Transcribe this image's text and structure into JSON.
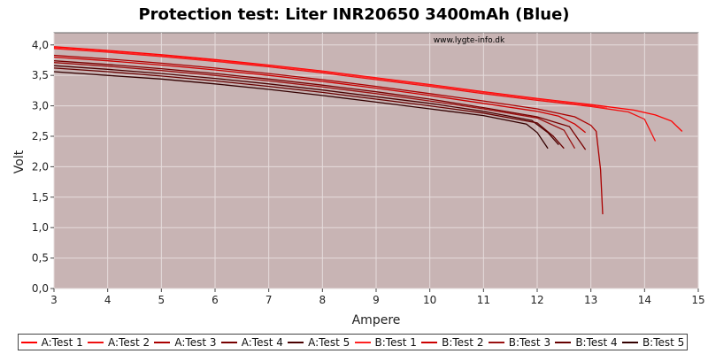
{
  "chart_data": {
    "type": "line",
    "title": "Protection test: Liter INR20650 3400mAh (Blue)",
    "watermark": "www.lygte-info.dk",
    "xlabel": "Ampere",
    "ylabel": "Volt",
    "xlim": [
      3,
      15
    ],
    "ylim": [
      0,
      4.2
    ],
    "xticks": [
      "3",
      "4",
      "5",
      "6",
      "7",
      "8",
      "9",
      "10",
      "11",
      "12",
      "13",
      "14",
      "15"
    ],
    "yticks": [
      "0,0",
      "0,5",
      "1,0",
      "1,5",
      "2,0",
      "2,5",
      "3,0",
      "3,5",
      "4,0"
    ],
    "grid": true,
    "background": "#c8b4b4",
    "legend_position": "bottom",
    "series": [
      {
        "name": "A:Test 1",
        "color": "#ff0000",
        "points": [
          [
            3,
            3.97
          ],
          [
            4,
            3.91
          ],
          [
            5,
            3.84
          ],
          [
            6,
            3.76
          ],
          [
            7,
            3.67
          ],
          [
            8,
            3.57
          ],
          [
            9,
            3.46
          ],
          [
            10,
            3.35
          ],
          [
            11,
            3.23
          ],
          [
            12,
            3.12
          ],
          [
            13,
            3.02
          ],
          [
            13.8,
            2.93
          ],
          [
            14.2,
            2.85
          ],
          [
            14.5,
            2.75
          ],
          [
            14.7,
            2.58
          ]
        ]
      },
      {
        "name": "A:Test 2",
        "color": "#ee1111",
        "points": [
          [
            3,
            3.94
          ],
          [
            4,
            3.88
          ],
          [
            5,
            3.81
          ],
          [
            6,
            3.73
          ],
          [
            7,
            3.64
          ],
          [
            8,
            3.54
          ],
          [
            9,
            3.43
          ],
          [
            10,
            3.32
          ],
          [
            11,
            3.2
          ],
          [
            12,
            3.09
          ],
          [
            13,
            2.99
          ],
          [
            13.7,
            2.9
          ],
          [
            14,
            2.78
          ],
          [
            14.1,
            2.6
          ],
          [
            14.2,
            2.42
          ]
        ]
      },
      {
        "name": "A:Test 3",
        "color": "#aa0000",
        "points": [
          [
            3,
            3.83
          ],
          [
            4,
            3.77
          ],
          [
            5,
            3.7
          ],
          [
            6,
            3.62
          ],
          [
            7,
            3.53
          ],
          [
            8,
            3.43
          ],
          [
            9,
            3.32
          ],
          [
            10,
            3.2
          ],
          [
            11,
            3.08
          ],
          [
            12,
            2.95
          ],
          [
            12.7,
            2.82
          ],
          [
            13,
            2.68
          ],
          [
            13.1,
            2.58
          ],
          [
            13.18,
            1.95
          ],
          [
            13.22,
            1.22
          ]
        ]
      },
      {
        "name": "A:Test 4",
        "color": "#770000",
        "points": [
          [
            3,
            3.74
          ],
          [
            4,
            3.68
          ],
          [
            5,
            3.61
          ],
          [
            6,
            3.53
          ],
          [
            7,
            3.44
          ],
          [
            8,
            3.34
          ],
          [
            9,
            3.23
          ],
          [
            10,
            3.11
          ],
          [
            11,
            2.97
          ],
          [
            12,
            2.82
          ],
          [
            12.6,
            2.66
          ],
          [
            12.9,
            2.28
          ]
        ]
      },
      {
        "name": "A:Test 5",
        "color": "#4a0000",
        "points": [
          [
            3,
            3.66
          ],
          [
            4,
            3.6
          ],
          [
            5,
            3.53
          ],
          [
            6,
            3.45
          ],
          [
            7,
            3.36
          ],
          [
            8,
            3.26
          ],
          [
            9,
            3.15
          ],
          [
            10,
            3.04
          ],
          [
            11,
            2.91
          ],
          [
            11.9,
            2.76
          ],
          [
            12.2,
            2.56
          ],
          [
            12.4,
            2.36
          ]
        ]
      },
      {
        "name": "B:Test 1",
        "color": "#ff2222",
        "points": [
          [
            3,
            3.95
          ],
          [
            4,
            3.89
          ],
          [
            5,
            3.82
          ],
          [
            6,
            3.74
          ],
          [
            7,
            3.66
          ],
          [
            8,
            3.56
          ],
          [
            9,
            3.45
          ],
          [
            10,
            3.34
          ],
          [
            11,
            3.22
          ],
          [
            12,
            3.11
          ],
          [
            12.8,
            3.03
          ],
          [
            13.3,
            2.96
          ]
        ]
      },
      {
        "name": "B:Test 2",
        "color": "#cc0000",
        "points": [
          [
            3,
            3.8
          ],
          [
            4,
            3.74
          ],
          [
            5,
            3.67
          ],
          [
            6,
            3.59
          ],
          [
            7,
            3.5
          ],
          [
            8,
            3.4
          ],
          [
            9,
            3.29
          ],
          [
            10,
            3.17
          ],
          [
            11,
            3.04
          ],
          [
            12,
            2.91
          ],
          [
            12.4,
            2.83
          ],
          [
            12.7,
            2.7
          ],
          [
            12.9,
            2.56
          ]
        ]
      },
      {
        "name": "B:Test 3",
        "color": "#991111",
        "points": [
          [
            3,
            3.71
          ],
          [
            4,
            3.65
          ],
          [
            5,
            3.58
          ],
          [
            6,
            3.5
          ],
          [
            7,
            3.41
          ],
          [
            8,
            3.31
          ],
          [
            9,
            3.2
          ],
          [
            10,
            3.08
          ],
          [
            11,
            2.95
          ],
          [
            12,
            2.8
          ],
          [
            12.5,
            2.6
          ],
          [
            12.7,
            2.3
          ]
        ]
      },
      {
        "name": "B:Test 4",
        "color": "#660000",
        "points": [
          [
            3,
            3.62
          ],
          [
            4,
            3.56
          ],
          [
            5,
            3.49
          ],
          [
            6,
            3.41
          ],
          [
            7,
            3.32
          ],
          [
            8,
            3.22
          ],
          [
            9,
            3.11
          ],
          [
            10,
            3.0
          ],
          [
            11,
            2.88
          ],
          [
            12,
            2.72
          ],
          [
            12.3,
            2.5
          ],
          [
            12.5,
            2.3
          ]
        ]
      },
      {
        "name": "B:Test 5",
        "color": "#330000",
        "points": [
          [
            3,
            3.56
          ],
          [
            4,
            3.5
          ],
          [
            5,
            3.44
          ],
          [
            6,
            3.36
          ],
          [
            7,
            3.27
          ],
          [
            8,
            3.17
          ],
          [
            9,
            3.06
          ],
          [
            10,
            2.95
          ],
          [
            11,
            2.84
          ],
          [
            11.8,
            2.7
          ],
          [
            12,
            2.56
          ],
          [
            12.2,
            2.3
          ]
        ]
      }
    ]
  }
}
